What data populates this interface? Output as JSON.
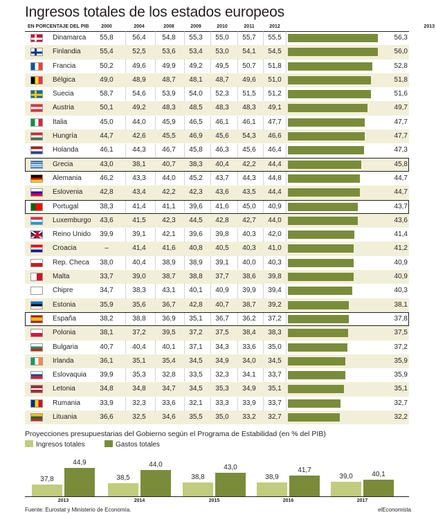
{
  "title": "Ingresos totales de los estados europeos",
  "table_header": {
    "label": "EN PORCENTAJE DEL PIB",
    "years": [
      "2000",
      "2004",
      "2008",
      "2009",
      "2010",
      "2011",
      "2012",
      "2013"
    ]
  },
  "colors": {
    "bar_dark": "#7a8c3a",
    "bar_light": "#c2cc7e",
    "row_shade": "#f2efd9"
  },
  "chart_data": [
    {
      "type": "table",
      "title": "Ingresos totales de los estados europeos",
      "subtitle": "EN PORCENTAJE DEL PIB",
      "columns": [
        "2000",
        "2004",
        "2008",
        "2009",
        "2010",
        "2011",
        "2012",
        "2013"
      ],
      "bar_column": "2013",
      "bar_scale": [
        0,
        60
      ],
      "highlighted_rows": [
        "Grecia",
        "Portugal",
        "España"
      ],
      "rows": [
        {
          "country": "Dinamarca",
          "flag": "denmark-flag",
          "values": [
            "55,8",
            "56,4",
            "54,8",
            "55,3",
            "55,0",
            "55,7",
            "55,5",
            "56,3"
          ],
          "v2013": 56.3
        },
        {
          "country": "Finlandia",
          "flag": "finland-flag",
          "values": [
            "55,4",
            "52,5",
            "53,6",
            "53,4",
            "53,0",
            "54,1",
            "54,5",
            "56,0"
          ],
          "v2013": 56.0
        },
        {
          "country": "Francia",
          "flag": "france-flag",
          "values": [
            "50,2",
            "49,6",
            "49,9",
            "49,2",
            "49,5",
            "50,7",
            "51,8",
            "52,8"
          ],
          "v2013": 52.8
        },
        {
          "country": "Bélgica",
          "flag": "belgium-flag",
          "values": [
            "49,0",
            "48,9",
            "48,7",
            "48,1",
            "48,7",
            "49,6",
            "51,0",
            "51,8"
          ],
          "v2013": 51.8
        },
        {
          "country": "Suecia",
          "flag": "sweden-flag",
          "values": [
            "58,7",
            "54,6",
            "53,9",
            "54,0",
            "52,3",
            "51,5",
            "51,2",
            "51,6"
          ],
          "v2013": 51.6
        },
        {
          "country": "Austria",
          "flag": "austria-flag",
          "values": [
            "50,1",
            "49,2",
            "48,3",
            "48,5",
            "48,3",
            "48,3",
            "49,1",
            "49,7"
          ],
          "v2013": 49.7
        },
        {
          "country": "Italia",
          "flag": "italy-flag",
          "values": [
            "45,0",
            "44,0",
            "45,9",
            "46,5",
            "46,1",
            "46,1",
            "47,7",
            "47,7"
          ],
          "v2013": 47.7
        },
        {
          "country": "Hungría",
          "flag": "hungary-flag",
          "values": [
            "44,7",
            "42,6",
            "45,5",
            "46,9",
            "45,6",
            "54,3",
            "46,6",
            "47,7"
          ],
          "v2013": 47.7
        },
        {
          "country": "Holanda",
          "flag": "netherlands-flag",
          "values": [
            "46,1",
            "44,3",
            "46,7",
            "45,8",
            "46,3",
            "45,6",
            "46,4",
            "47,3"
          ],
          "v2013": 47.3
        },
        {
          "country": "Grecia",
          "flag": "greece-flag",
          "values": [
            "43,0",
            "38,1",
            "40,7",
            "38,3",
            "40,4",
            "42,2",
            "44,4",
            "45,8"
          ],
          "v2013": 45.8
        },
        {
          "country": "Alemania",
          "flag": "germany-flag",
          "values": [
            "46,2",
            "43,3",
            "44,0",
            "45,2",
            "43,7",
            "44,3",
            "44,8",
            "44,7"
          ],
          "v2013": 44.7
        },
        {
          "country": "Eslovenia",
          "flag": "slovenia-flag",
          "values": [
            "42,8",
            "43,4",
            "42,2",
            "42,3",
            "43,6",
            "43,5",
            "44,4",
            "44,7"
          ],
          "v2013": 44.7
        },
        {
          "country": "Portugal",
          "flag": "portugal-flag",
          "values": [
            "38,3",
            "41,4",
            "41,1",
            "39,6",
            "41,6",
            "45,0",
            "40,9",
            "43,7"
          ],
          "v2013": 43.7
        },
        {
          "country": "Luxemburgo",
          "flag": "luxembourg-flag",
          "values": [
            "43,6",
            "41,5",
            "42,3",
            "44,5",
            "42,8",
            "42,7",
            "44,0",
            "43,6"
          ],
          "v2013": 43.6
        },
        {
          "country": "Reino Unido",
          "flag": "uk-flag",
          "values": [
            "39,9",
            "39,1",
            "42,1",
            "39,6",
            "39,8",
            "40,3",
            "42,0",
            "41,4"
          ],
          "v2013": 41.4
        },
        {
          "country": "Croacia",
          "flag": "croatia-flag",
          "values": [
            "–",
            "41,4",
            "41,6",
            "40,8",
            "40,5",
            "40,3",
            "41,0",
            "41,2"
          ],
          "v2013": 41.2
        },
        {
          "country": "Rep. Checa",
          "flag": "czech-flag",
          "values": [
            "38,0",
            "40,4",
            "38,9",
            "38,9",
            "39,1",
            "40,0",
            "40,3",
            "40,9"
          ],
          "v2013": 40.9
        },
        {
          "country": "Malta",
          "flag": "malta-flag",
          "values": [
            "33,7",
            "39,0",
            "38,7",
            "38,8",
            "37,7",
            "38,6",
            "39,8",
            "40,9"
          ],
          "v2013": 40.9
        },
        {
          "country": "Chipre",
          "flag": "cyprus-flag",
          "values": [
            "34,7",
            "38,3",
            "43,1",
            "40,1",
            "40,9",
            "39,9",
            "39,4",
            "40,3"
          ],
          "v2013": 40.3
        },
        {
          "country": "Estonia",
          "flag": "estonia-flag",
          "values": [
            "35,9",
            "35,6",
            "36,7",
            "42,8",
            "40,7",
            "38,7",
            "39,2",
            "38,1"
          ],
          "v2013": 38.1
        },
        {
          "country": "España",
          "flag": "spain-flag",
          "values": [
            "38,2",
            "38,8",
            "36,9",
            "35,1",
            "36,7",
            "36,2",
            "37,2",
            "37,8"
          ],
          "v2013": 37.8
        },
        {
          "country": "Polonia",
          "flag": "poland-flag",
          "values": [
            "38,1",
            "37,2",
            "39,5",
            "37,2",
            "37,5",
            "38,4",
            "38,3",
            "37,5"
          ],
          "v2013": 37.5
        },
        {
          "country": "Bulgaria",
          "flag": "bulgaria-flag",
          "values": [
            "40,7",
            "40,4",
            "40,1",
            "37,1",
            "34,3",
            "33,6",
            "35,0",
            "37,2"
          ],
          "v2013": 37.2
        },
        {
          "country": "Irlanda",
          "flag": "ireland-flag",
          "values": [
            "36,1",
            "35,1",
            "35,4",
            "34,5",
            "34,9",
            "34,0",
            "34,5",
            "35,9"
          ],
          "v2013": 35.9
        },
        {
          "country": "Eslovaquia",
          "flag": "slovakia-flag",
          "values": [
            "39,9",
            "35,3",
            "32,8",
            "33,5",
            "32,3",
            "34,1",
            "33,7",
            "35,9"
          ],
          "v2013": 35.9
        },
        {
          "country": "Letonia",
          "flag": "latvia-flag",
          "values": [
            "34,8",
            "34,8",
            "34,7",
            "34,5",
            "35,3",
            "34,9",
            "35,1",
            "35,1"
          ],
          "v2013": 35.1
        },
        {
          "country": "Rumania",
          "flag": "romania-flag",
          "values": [
            "33,9",
            "32,3",
            "33,6",
            "32,1",
            "33,3",
            "33,9",
            "33,7",
            "32,7"
          ],
          "v2013": 32.7
        },
        {
          "country": "Lituania",
          "flag": "lithuania-flag",
          "values": [
            "36,6",
            "32,5",
            "34,6",
            "35,5",
            "35,0",
            "33,2",
            "32,7",
            "32,2"
          ],
          "v2013": 32.2
        }
      ]
    },
    {
      "type": "bar",
      "title": "Proyecciones presupuestarias del Gobierno según el Programa de Estabilidad (en % del PIB)",
      "categories": [
        "2013",
        "2014",
        "2015",
        "2016",
        "2017"
      ],
      "series": [
        {
          "name": "Ingresos totales",
          "values": [
            37.8,
            38.5,
            38.8,
            38.9,
            39.0
          ],
          "labels": [
            "37,8",
            "38,5",
            "38,8",
            "38,9",
            "39,0"
          ]
        },
        {
          "name": "Gastos totales",
          "values": [
            44.9,
            44.0,
            43.0,
            41.7,
            40.1
          ],
          "labels": [
            "44,9",
            "44,0",
            "43,0",
            "41,7",
            "40,1"
          ]
        }
      ],
      "ylim": [
        34,
        48
      ]
    }
  ],
  "footer": {
    "source": "Fuente: Eurostat y Ministerio de Economía.",
    "brand": "elEconomista"
  }
}
